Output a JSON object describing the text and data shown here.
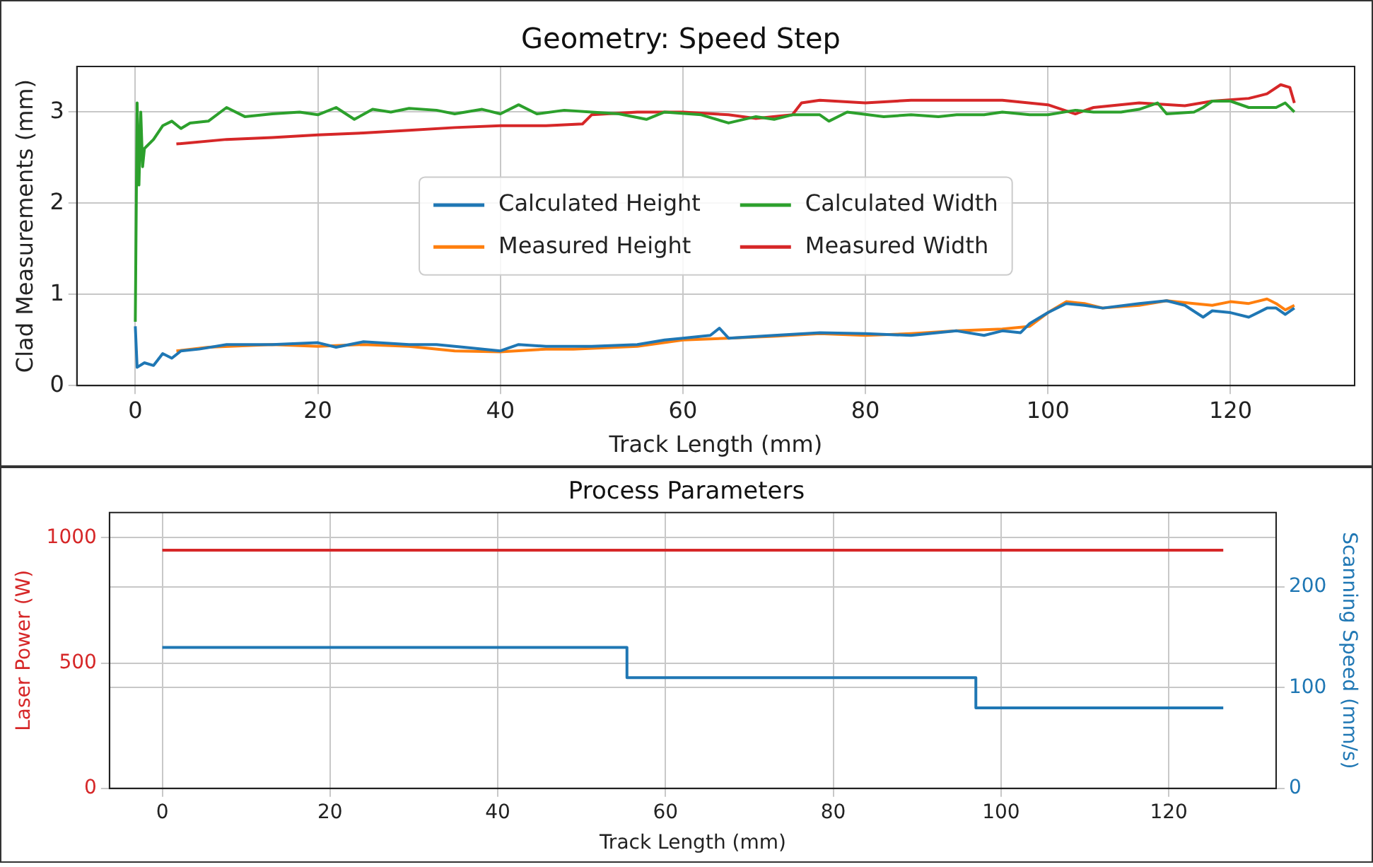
{
  "chart_data": [
    {
      "type": "line",
      "title": "Geometry: Speed Step",
      "xlabel": "Track Length (mm)",
      "ylabel": "Clad Measurements (mm)",
      "xlim": [
        -6.4,
        133.6
      ],
      "xticks": [
        0,
        20,
        40,
        60,
        80,
        100,
        120
      ],
      "ylim": [
        0,
        3.5
      ],
      "yticks": [
        0,
        1,
        2,
        3
      ],
      "grid": true,
      "legend": "center",
      "series": [
        {
          "name": "Calculated Height",
          "color": "#1f77b4",
          "x": [
            0,
            0.2,
            1,
            2,
            3,
            4,
            5,
            7,
            10,
            15,
            20,
            22,
            25,
            30,
            33,
            36,
            40,
            42,
            45,
            50,
            55,
            58,
            60,
            63,
            64,
            65,
            70,
            75,
            80,
            85,
            90,
            93,
            95,
            97,
            98,
            100,
            102,
            104,
            106,
            110,
            113,
            115,
            117,
            118,
            120,
            122,
            124,
            125,
            126,
            127
          ],
          "values": [
            0.65,
            0.2,
            0.25,
            0.22,
            0.35,
            0.3,
            0.38,
            0.4,
            0.45,
            0.45,
            0.47,
            0.42,
            0.48,
            0.45,
            0.45,
            0.42,
            0.38,
            0.45,
            0.43,
            0.43,
            0.45,
            0.5,
            0.52,
            0.55,
            0.63,
            0.52,
            0.55,
            0.58,
            0.57,
            0.55,
            0.6,
            0.55,
            0.6,
            0.58,
            0.68,
            0.8,
            0.9,
            0.88,
            0.85,
            0.9,
            0.93,
            0.88,
            0.75,
            0.82,
            0.8,
            0.75,
            0.85,
            0.85,
            0.78,
            0.85
          ]
        },
        {
          "name": "Measured Height",
          "color": "#ff7f0e",
          "x": [
            4.5,
            8,
            15,
            20,
            25,
            30,
            35,
            40,
            45,
            48,
            55,
            60,
            65,
            70,
            75,
            80,
            85,
            90,
            95,
            98,
            100,
            102,
            104,
            106,
            110,
            113,
            116,
            118,
            120,
            122,
            124,
            125,
            126,
            127
          ],
          "values": [
            0.38,
            0.42,
            0.45,
            0.43,
            0.45,
            0.43,
            0.38,
            0.37,
            0.4,
            0.4,
            0.43,
            0.5,
            0.52,
            0.54,
            0.57,
            0.55,
            0.57,
            0.6,
            0.62,
            0.65,
            0.8,
            0.92,
            0.9,
            0.85,
            0.88,
            0.93,
            0.9,
            0.88,
            0.92,
            0.9,
            0.95,
            0.9,
            0.83,
            0.88
          ]
        },
        {
          "name": "Calculated Width",
          "color": "#2ca02c",
          "x": [
            0,
            0.2,
            0.4,
            0.6,
            0.8,
            1,
            2,
            3,
            4,
            5,
            6,
            8,
            10,
            12,
            15,
            18,
            20,
            22,
            24,
            26,
            28,
            30,
            33,
            35,
            38,
            40,
            42,
            44,
            47,
            50,
            53,
            56,
            58,
            62,
            65,
            68,
            70,
            72,
            75,
            76,
            78,
            82,
            85,
            88,
            90,
            93,
            95,
            98,
            100,
            103,
            105,
            108,
            110,
            112,
            113,
            116,
            117,
            118,
            120,
            122,
            124,
            125,
            126,
            127
          ],
          "values": [
            0.7,
            3.1,
            2.2,
            3.0,
            2.4,
            2.6,
            2.7,
            2.85,
            2.9,
            2.82,
            2.88,
            2.9,
            3.05,
            2.95,
            2.98,
            3.0,
            2.97,
            3.05,
            2.92,
            3.03,
            3.0,
            3.04,
            3.02,
            2.98,
            3.03,
            2.98,
            3.08,
            2.98,
            3.02,
            3.0,
            2.98,
            2.92,
            3.0,
            2.97,
            2.88,
            2.95,
            2.92,
            2.97,
            2.97,
            2.9,
            3.0,
            2.95,
            2.97,
            2.95,
            2.97,
            2.97,
            3.0,
            2.97,
            2.97,
            3.02,
            3.0,
            3.0,
            3.03,
            3.1,
            2.98,
            3.0,
            3.05,
            3.12,
            3.12,
            3.05,
            3.05,
            3.05,
            3.1,
            3.0
          ]
        },
        {
          "name": "Measured Width",
          "color": "#d62728",
          "x": [
            4.5,
            10,
            15,
            20,
            25,
            30,
            35,
            40,
            45,
            49,
            50,
            55,
            60,
            65,
            68,
            72,
            73,
            75,
            80,
            85,
            90,
            95,
            100,
            103,
            105,
            110,
            115,
            118,
            122,
            124,
            125.5,
            126.5,
            127
          ],
          "values": [
            2.65,
            2.7,
            2.72,
            2.75,
            2.77,
            2.8,
            2.83,
            2.85,
            2.85,
            2.87,
            2.97,
            3.0,
            3.0,
            2.97,
            2.93,
            2.97,
            3.1,
            3.13,
            3.1,
            3.13,
            3.13,
            3.13,
            3.08,
            2.98,
            3.05,
            3.1,
            3.07,
            3.12,
            3.15,
            3.2,
            3.3,
            3.27,
            3.1
          ]
        }
      ]
    },
    {
      "type": "step",
      "title": "Process Parameters",
      "xlabel": "Track Length (mm)",
      "ylabel": "Laser Power (W)",
      "y2label": "Scanning Speed (mm/s)",
      "xlim": [
        -6.3,
        132.8
      ],
      "xticks": [
        0,
        20,
        40,
        60,
        80,
        100,
        120
      ],
      "ylim": [
        0,
        1100
      ],
      "yticks": [
        0,
        500,
        1000
      ],
      "y2lim": [
        0,
        274
      ],
      "y2ticks": [
        0,
        100,
        200
      ],
      "grid": true,
      "series": [
        {
          "color": "#d62728",
          "x": [
            0,
            126.5
          ],
          "values": [
            950,
            950
          ]
        },
        {
          "color": "#1f77b4",
          "axis": "y2",
          "x": [
            0,
            55.4,
            97,
            126.5
          ],
          "values": [
            140,
            110,
            80,
            80
          ]
        }
      ]
    }
  ]
}
